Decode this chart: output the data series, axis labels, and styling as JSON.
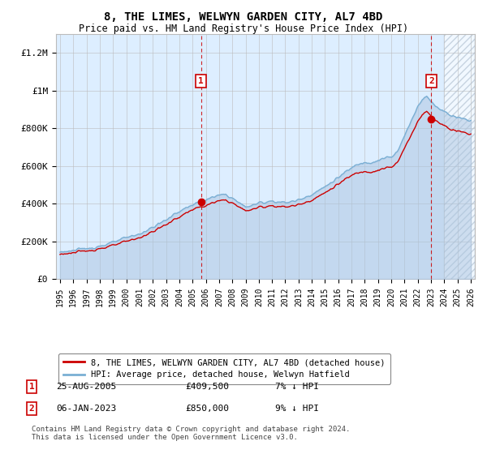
{
  "title": "8, THE LIMES, WELWYN GARDEN CITY, AL7 4BD",
  "subtitle": "Price paid vs. HM Land Registry's House Price Index (HPI)",
  "legend_line1": "8, THE LIMES, WELWYN GARDEN CITY, AL7 4BD (detached house)",
  "legend_line2": "HPI: Average price, detached house, Welwyn Hatfield",
  "annotation1_date": "25-AUG-2005",
  "annotation1_price": "£409,500",
  "annotation1_note": "7% ↓ HPI",
  "annotation2_date": "06-JAN-2023",
  "annotation2_price": "£850,000",
  "annotation2_note": "9% ↓ HPI",
  "footer": "Contains HM Land Registry data © Crown copyright and database right 2024.\nThis data is licensed under the Open Government Licence v3.0.",
  "hpi_color": "#aac4e0",
  "hpi_line_color": "#7aafd4",
  "price_color": "#cc0000",
  "background_color": "#ffffff",
  "plot_bg_color": "#ddeeff",
  "grid_color": "#bbbbbb",
  "hatch_color": "#ccddee",
  "ylim": [
    0,
    1300000
  ],
  "yticks": [
    0,
    200000,
    400000,
    600000,
    800000,
    1000000,
    1200000
  ],
  "xlim_start": 1994.7,
  "xlim_end": 2026.3,
  "sale1_x": 2005.646,
  "sale1_y": 409500,
  "sale2_x": 2023.014,
  "sale2_y": 850000,
  "hatch_start": 2024.0
}
